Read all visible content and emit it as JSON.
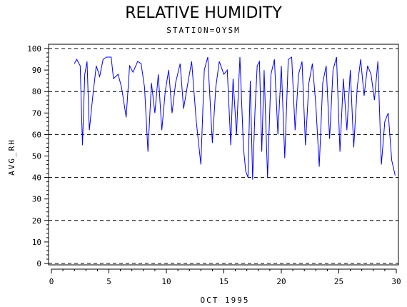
{
  "chart_data": {
    "type": "line",
    "title": "RELATIVE HUMIDITY",
    "subtitle": "STATION=OYSM",
    "xlabel": "OCT 1995",
    "ylabel": "AVG_RH",
    "xlim": [
      0,
      30
    ],
    "ylim": [
      0,
      100
    ],
    "x_ticks": [
      0,
      5,
      10,
      15,
      20,
      25,
      30
    ],
    "y_ticks": [
      0,
      10,
      20,
      30,
      40,
      50,
      60,
      70,
      80,
      90,
      100
    ],
    "dashed_gridlines_y": [
      0,
      20,
      40,
      60,
      80,
      100
    ],
    "line_color": "#0000ff",
    "series": [
      {
        "x": [
          2.0,
          2.2,
          2.5,
          2.7,
          2.9,
          3.1,
          3.3,
          3.6,
          3.9,
          4.2,
          4.5,
          4.8,
          5.2,
          5.4,
          5.8,
          6.1,
          6.5,
          6.8,
          7.1,
          7.5,
          7.8,
          8.1,
          8.4,
          8.7,
          9.0,
          9.3,
          9.6,
          9.9,
          10.2,
          10.5,
          10.8,
          11.2,
          11.5,
          11.9,
          12.2,
          12.6,
          13.0,
          13.3,
          13.6,
          14.0,
          14.3,
          14.6,
          15.0,
          15.3,
          15.6,
          15.8,
          16.1,
          16.4,
          16.7,
          16.9,
          17.1,
          17.3,
          17.5,
          17.7,
          17.9,
          18.1,
          18.3,
          18.5,
          18.8,
          19.1,
          19.4,
          19.7,
          20.0,
          20.3,
          20.6,
          20.9,
          21.2,
          21.5,
          21.8,
          22.1,
          22.4,
          22.7,
          23.0,
          23.3,
          23.6,
          23.9,
          24.2,
          24.5,
          24.8,
          25.1,
          25.4,
          25.7,
          26.0,
          26.3,
          26.6,
          26.9,
          27.2,
          27.5,
          27.8,
          28.1,
          28.4,
          28.7,
          29.0,
          29.3,
          29.6,
          29.9
        ],
        "y": [
          93,
          95,
          92,
          55,
          88,
          94,
          62,
          78,
          92,
          87,
          95,
          96,
          96,
          86,
          88,
          82,
          68,
          92,
          89,
          94,
          93,
          82,
          52,
          84,
          70,
          88,
          62,
          80,
          90,
          70,
          84,
          93,
          72,
          85,
          94,
          66,
          46,
          90,
          96,
          56,
          82,
          94,
          88,
          90,
          55,
          86,
          60,
          96,
          54,
          43,
          40,
          85,
          39,
          70,
          92,
          94,
          52,
          90,
          40,
          88,
          95,
          60,
          92,
          49,
          95,
          96,
          62,
          88,
          94,
          55,
          84,
          93,
          74,
          45,
          84,
          92,
          58,
          90,
          96,
          52,
          86,
          62,
          90,
          54,
          82,
          95,
          78,
          92,
          88,
          76,
          94,
          46,
          66,
          70,
          48,
          41
        ]
      }
    ]
  }
}
